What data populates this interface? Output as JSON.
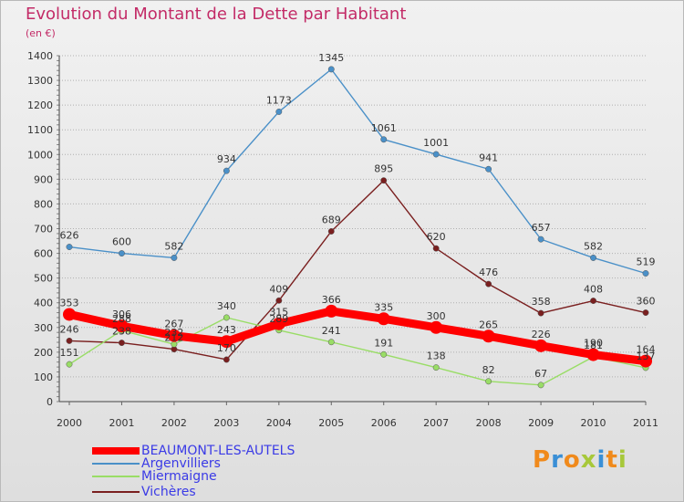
{
  "header": {
    "title": "Evolution du Montant de la Dette par Habitant",
    "subtitle": "(en €)"
  },
  "logo": {
    "text": "Proxiti"
  },
  "colors": {
    "title": "#c32b67",
    "legend_text": "#3a3ae6",
    "axis": "#444444",
    "grid": "#b0b0b0"
  },
  "chart_data": {
    "type": "line",
    "title": "Evolution du Montant de la Dette par Habitant",
    "subtitle": "(en €)",
    "xlabel": "",
    "ylabel": "",
    "x": [
      "2000",
      "2001",
      "2002",
      "2003",
      "2004",
      "2005",
      "2006",
      "2007",
      "2008",
      "2009",
      "2010",
      "2011"
    ],
    "ylim": [
      0,
      1400
    ],
    "yticks": [
      0,
      100,
      200,
      300,
      400,
      500,
      600,
      700,
      800,
      900,
      1000,
      1100,
      1200,
      1300,
      1400
    ],
    "grid": "horizontal dashed",
    "legend_placement": "bottom-left",
    "series": [
      {
        "name": "BEAUMONT-LES-AUTELS",
        "color": "#ff0000",
        "values": [
          353,
          306,
          267,
          243,
          315,
          366,
          335,
          300,
          265,
          226,
          190,
          164
        ]
      },
      {
        "name": "Argenvilliers",
        "color": "#4a90c8",
        "values": [
          626,
          600,
          582,
          934,
          1173,
          1345,
          1061,
          1001,
          941,
          657,
          582,
          519
        ]
      },
      {
        "name": "Miermaigne",
        "color": "#99dd66",
        "values": [
          151,
          288,
          232,
          340,
          289,
          241,
          191,
          138,
          82,
          67,
          181,
          137
        ]
      },
      {
        "name": "Vichères",
        "color": "#7a1f1f",
        "values": [
          246,
          238,
          212,
          170,
          409,
          689,
          895,
          620,
          476,
          358,
          408,
          360
        ]
      }
    ]
  }
}
